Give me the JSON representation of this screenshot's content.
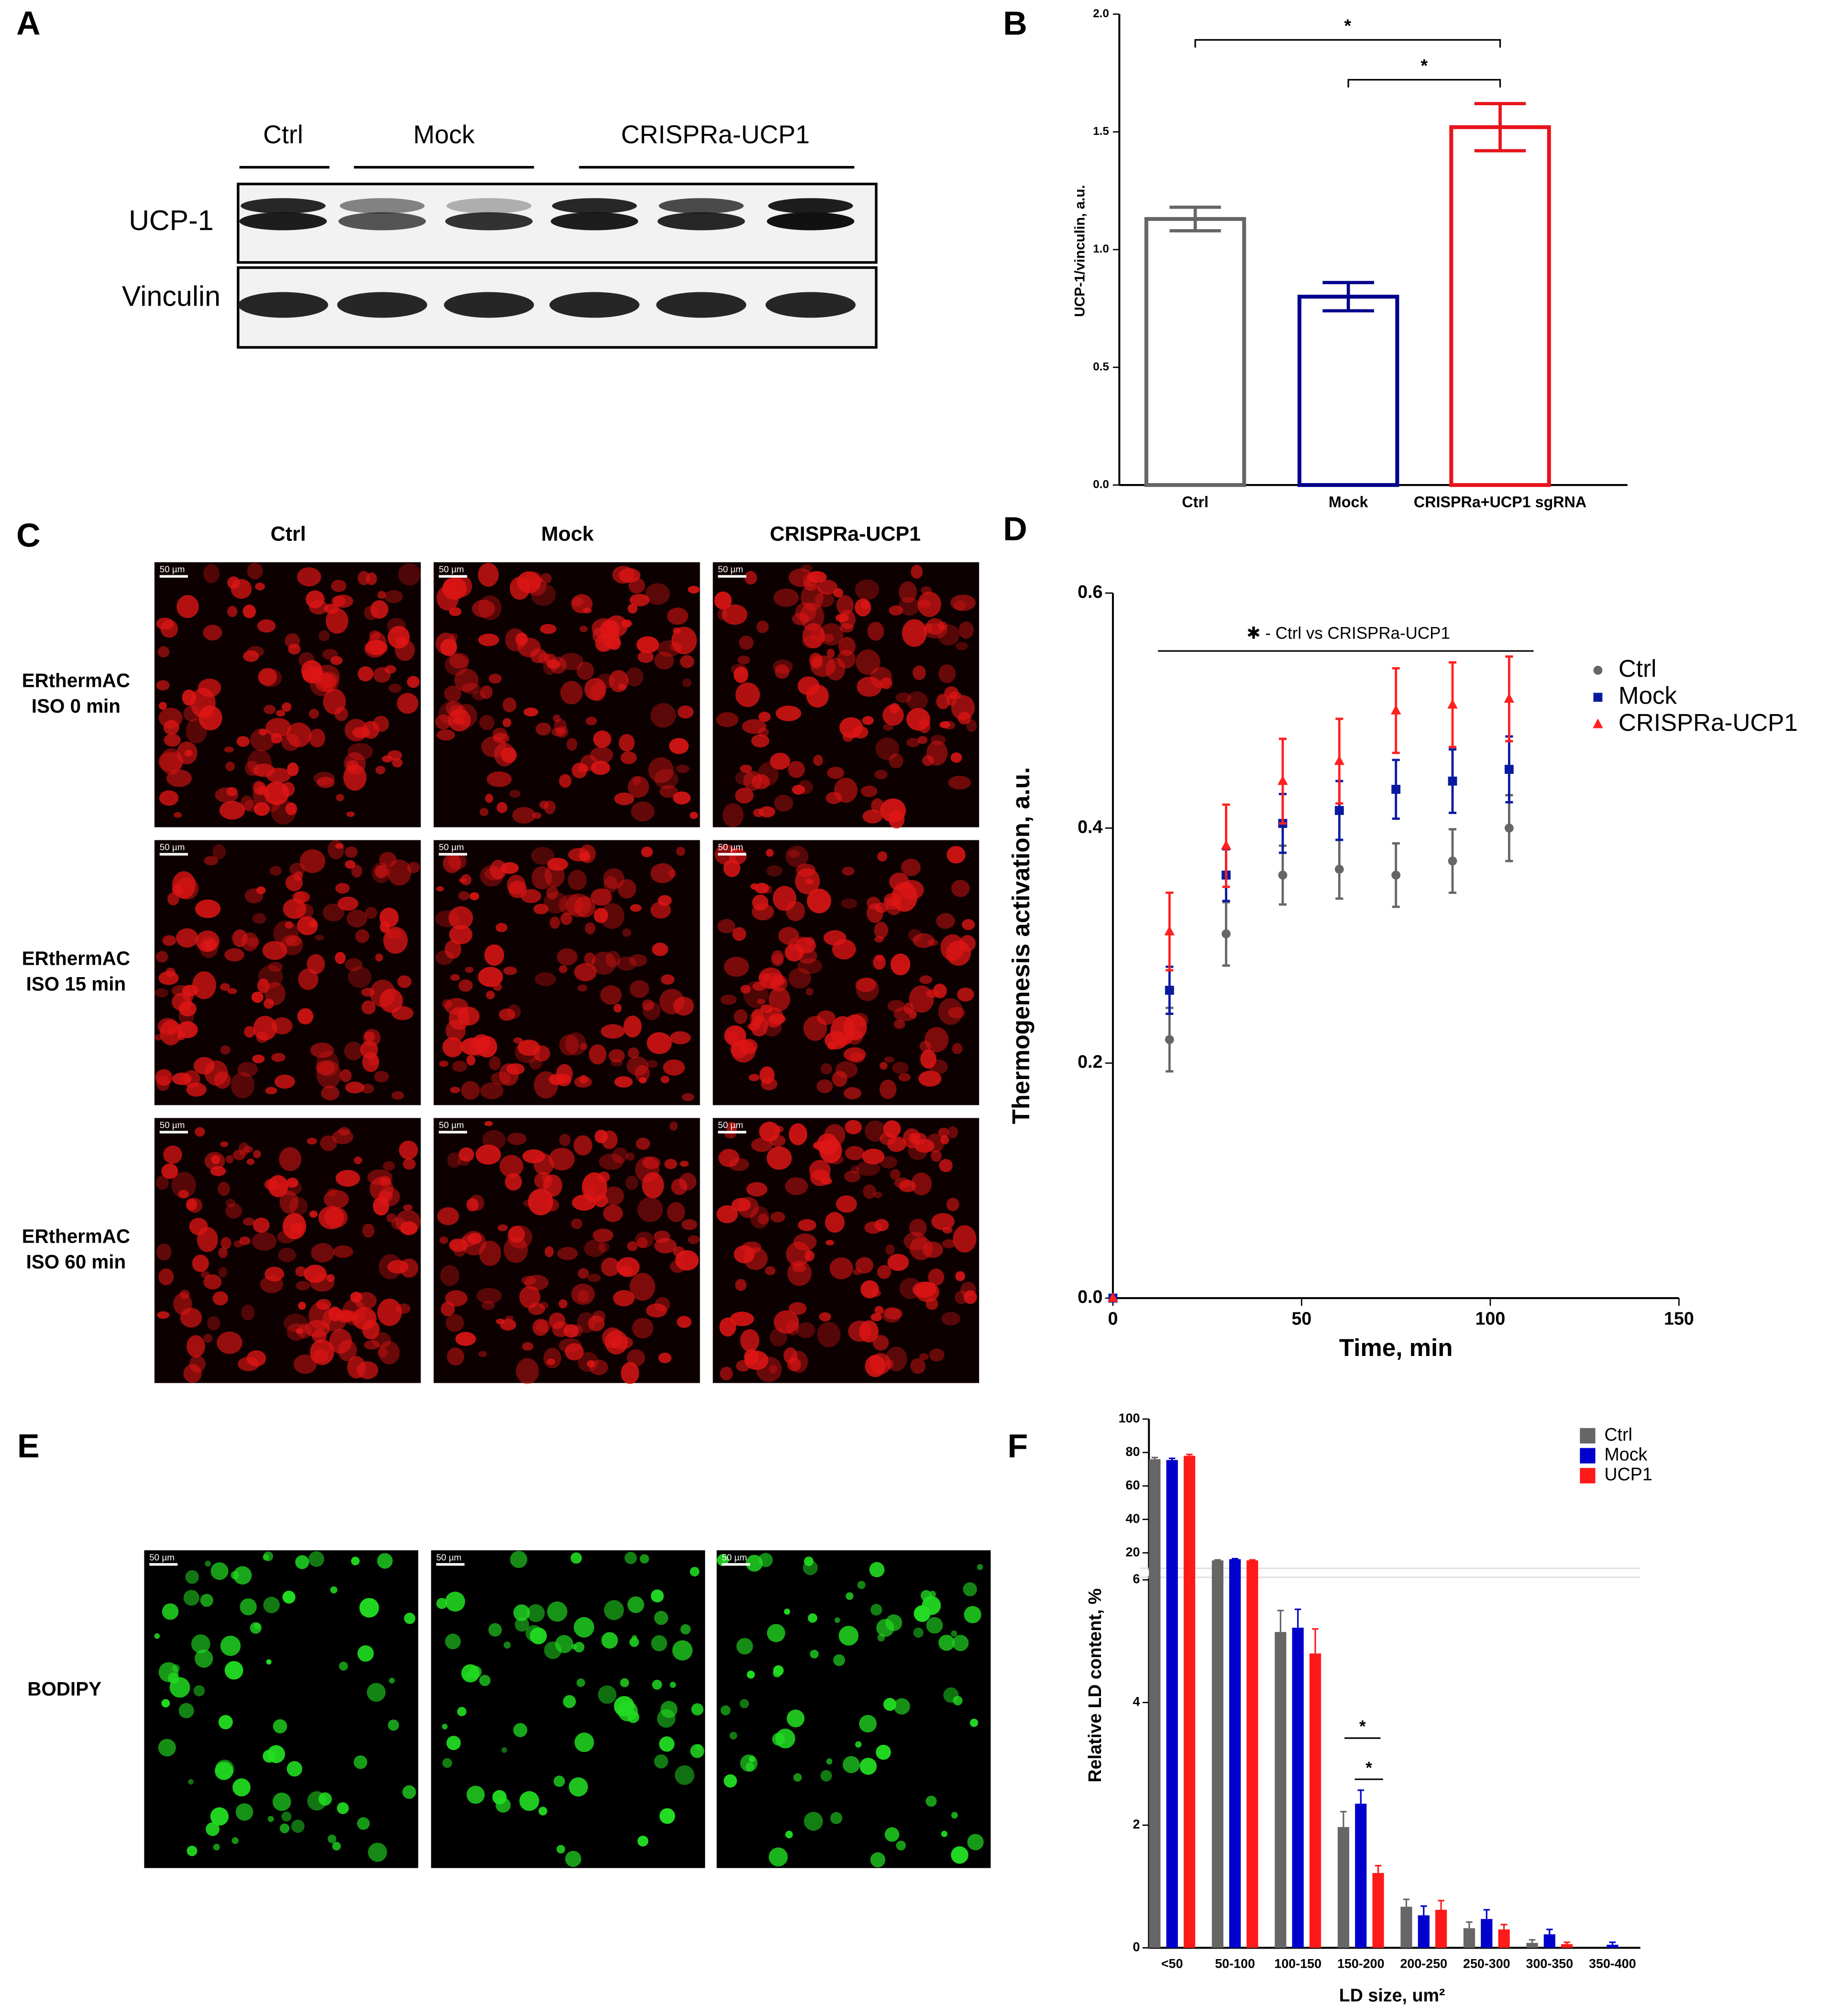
{
  "panel_labels": [
    "A",
    "B",
    "C",
    "D",
    "E",
    "F"
  ],
  "blot": {
    "groups": [
      "Ctrl",
      "Mock",
      "CRISPRa-UCP1"
    ],
    "rows": [
      "UCP-1",
      "Vinculin"
    ]
  },
  "microscopy": {
    "columns": [
      "Ctrl",
      "Mock",
      "CRISPRa-UCP1"
    ],
    "rows": [
      [
        "ERthermAC",
        "ISO 0 min"
      ],
      [
        "ERthermAC",
        "ISO 15 min"
      ],
      [
        "ERthermAC",
        "ISO 60 min"
      ]
    ],
    "scale_bar": "50 µm",
    "stain_label": "BODIPY"
  },
  "chart_data": [
    {
      "type": "bar",
      "ylabel": "UCP-1/vinculin, a.u.",
      "categories": [
        "Ctrl",
        "Mock",
        "CRISPRa+UCP1 sgRNA"
      ],
      "values": [
        1.13,
        0.8,
        1.52
      ],
      "errors": [
        0.05,
        0.06,
        0.1
      ],
      "colors": [
        "#666666",
        "#00008b",
        "#e8141b"
      ],
      "ylim": [
        0,
        2
      ],
      "yticks": [
        {
          "value": 0,
          "label": "0.0"
        },
        {
          "value": 0.5,
          "label": "0.5"
        },
        {
          "value": 1,
          "label": "1.0"
        },
        {
          "value": 1.5,
          "label": "1.5"
        },
        {
          "value": 2,
          "label": "2.0"
        }
      ],
      "annotations": [
        "*",
        "*"
      ]
    },
    {
      "type": "scatter",
      "xlabel": "Time, min",
      "ylabel": "Thermogenesis activation, a.u.",
      "x": [
        0,
        15,
        30,
        45,
        60,
        75,
        90,
        105
      ],
      "series": [
        {
          "name": "Ctrl",
          "color": "#666666",
          "marker": "circle",
          "values": [
            0,
            0.22,
            0.31,
            0.36,
            0.365,
            0.36,
            0.372,
            0.4
          ],
          "errors": [
            0,
            0.027,
            0.027,
            0.025,
            0.025,
            0.027,
            0.027,
            0.028
          ]
        },
        {
          "name": "Mock",
          "color": "#0a1aa0",
          "marker": "square",
          "values": [
            0,
            0.262,
            0.36,
            0.404,
            0.415,
            0.433,
            0.44,
            0.45
          ],
          "errors": [
            0,
            0.02,
            0.022,
            0.025,
            0.025,
            0.025,
            0.027,
            0.028
          ]
        },
        {
          "name": "CRISPRa-UCP1",
          "color": "#ff2020",
          "marker": "triangle",
          "values": [
            0,
            0.312,
            0.385,
            0.44,
            0.457,
            0.5,
            0.505,
            0.51
          ],
          "errors": [
            0,
            0.033,
            0.035,
            0.036,
            0.036,
            0.036,
            0.036,
            0.036
          ]
        }
      ],
      "xlim": [
        0,
        150
      ],
      "xticks": [
        0,
        50,
        100,
        150
      ],
      "ylim": [
        0,
        0.6
      ],
      "yticks": [
        {
          "value": 0,
          "label": "0.0"
        },
        {
          "value": 0.2,
          "label": "0.2"
        },
        {
          "value": 0.4,
          "label": "0.4"
        },
        {
          "value": 0.6,
          "label": "0.6"
        }
      ],
      "annotation": "✱ - Ctrl vs CRISPRa-UCP1",
      "legend": "right"
    },
    {
      "type": "grouped_bar",
      "xlabel": "LD size, um²",
      "ylabel": "Relative LD content, %",
      "categories": [
        "<50",
        "50-100",
        "100-150",
        "150-200",
        "200-250",
        "250-300",
        "300-350",
        "350-400"
      ],
      "series": [
        {
          "name": "Ctrl",
          "color": "#666666",
          "values": [
            76,
            15.5,
            5.15,
            1.97,
            0.67,
            0.32,
            0.08,
            0
          ],
          "errors": [
            1,
            0.3,
            0.35,
            0.25,
            0.12,
            0.1,
            0.05,
            0
          ]
        },
        {
          "name": "Mock",
          "color": "#0000cc",
          "values": [
            75.5,
            16.2,
            5.22,
            2.35,
            0.53,
            0.47,
            0.22,
            0.05
          ],
          "errors": [
            1,
            0.3,
            0.3,
            0.22,
            0.15,
            0.15,
            0.08,
            0.04
          ]
        },
        {
          "name": "UCP1",
          "color": "#ff1a1a",
          "values": [
            78,
            15.5,
            4.8,
            1.22,
            0.62,
            0.3,
            0.06,
            0
          ],
          "errors": [
            0.8,
            0.3,
            0.4,
            0.12,
            0.15,
            0.08,
            0.03,
            0
          ]
        }
      ],
      "ylim": [
        0,
        100
      ],
      "y_break": [
        6,
        20
      ],
      "yticks": [
        0,
        2,
        4,
        6,
        20,
        40,
        60,
        80,
        100
      ],
      "annotations": [
        "*",
        "*"
      ],
      "legend": "top-right"
    }
  ]
}
